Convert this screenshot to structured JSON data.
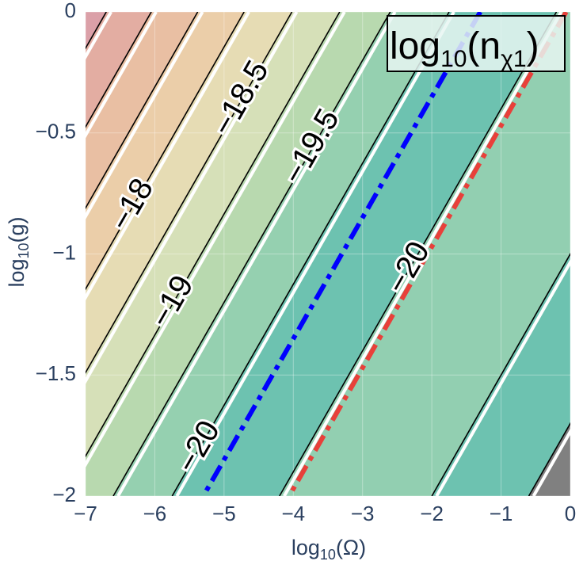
{
  "chart_data": {
    "type": "contour",
    "title": [
      "log",
      "10",
      "(n",
      "χ1",
      ")"
    ],
    "x_label": [
      "log",
      "10",
      "(Ω)"
    ],
    "y_label": [
      "log",
      "10",
      "(g)"
    ],
    "xlim": [
      -7,
      0
    ],
    "ylim": [
      -2,
      0
    ],
    "xticks": [
      {
        "value": -7,
        "label": "−7"
      },
      {
        "value": -6,
        "label": "−6"
      },
      {
        "value": -5,
        "label": "−5"
      },
      {
        "value": -4,
        "label": "−4"
      },
      {
        "value": -3,
        "label": "−3"
      },
      {
        "value": -2,
        "label": "−2"
      },
      {
        "value": -1,
        "label": "−1"
      },
      0
    ],
    "yticks": [
      0,
      {
        "value": -0.5,
        "label": "−0.5"
      },
      {
        "value": -1,
        "label": "−1"
      },
      {
        "value": -1.5,
        "label": "−1.5"
      },
      {
        "value": -2,
        "label": "−2"
      }
    ],
    "contours": [
      {
        "x": [
          -6.7,
          -10.7
        ]
      },
      {
        "x": [
          -6.05,
          -10.05
        ]
      },
      {
        "x": [
          -5.38,
          -9.38
        ]
      },
      {
        "x": [
          -4.71,
          -8.71
        ],
        "label": "−18"
      },
      {
        "x": [
          -4.02,
          -8.02
        ],
        "label": "−18.5"
      },
      {
        "x": [
          -3.33,
          -7.33
        ],
        "label": "−19"
      },
      {
        "x": [
          -2.6,
          -6.6
        ],
        "label": "−19.5"
      },
      {
        "x": [
          -1.75,
          -5.75
        ],
        "label": "−20"
      },
      {
        "x": [
          -0.2,
          -4.2
        ],
        "label": "−20"
      },
      {
        "x": [
          2.0,
          -2.0
        ]
      },
      {
        "x": [
          3.4,
          -0.6
        ]
      }
    ],
    "fill_colors": [
      "#dba0a8",
      "#e3ada2",
      "#e9bfa3",
      "#ebcea9",
      "#e6dcb4",
      "#d6e0b8",
      "#b8d9af",
      "#95d0b0",
      "#6dc2b0",
      "#92cfb1",
      "#6dc2b0",
      "#808080"
    ],
    "lines": [
      {
        "color": "#0000ff",
        "x": [
          -1.3,
          -5.3
        ]
      },
      {
        "color": "#e8403a",
        "x": [
          -0.06,
          -4.06
        ]
      }
    ]
  }
}
